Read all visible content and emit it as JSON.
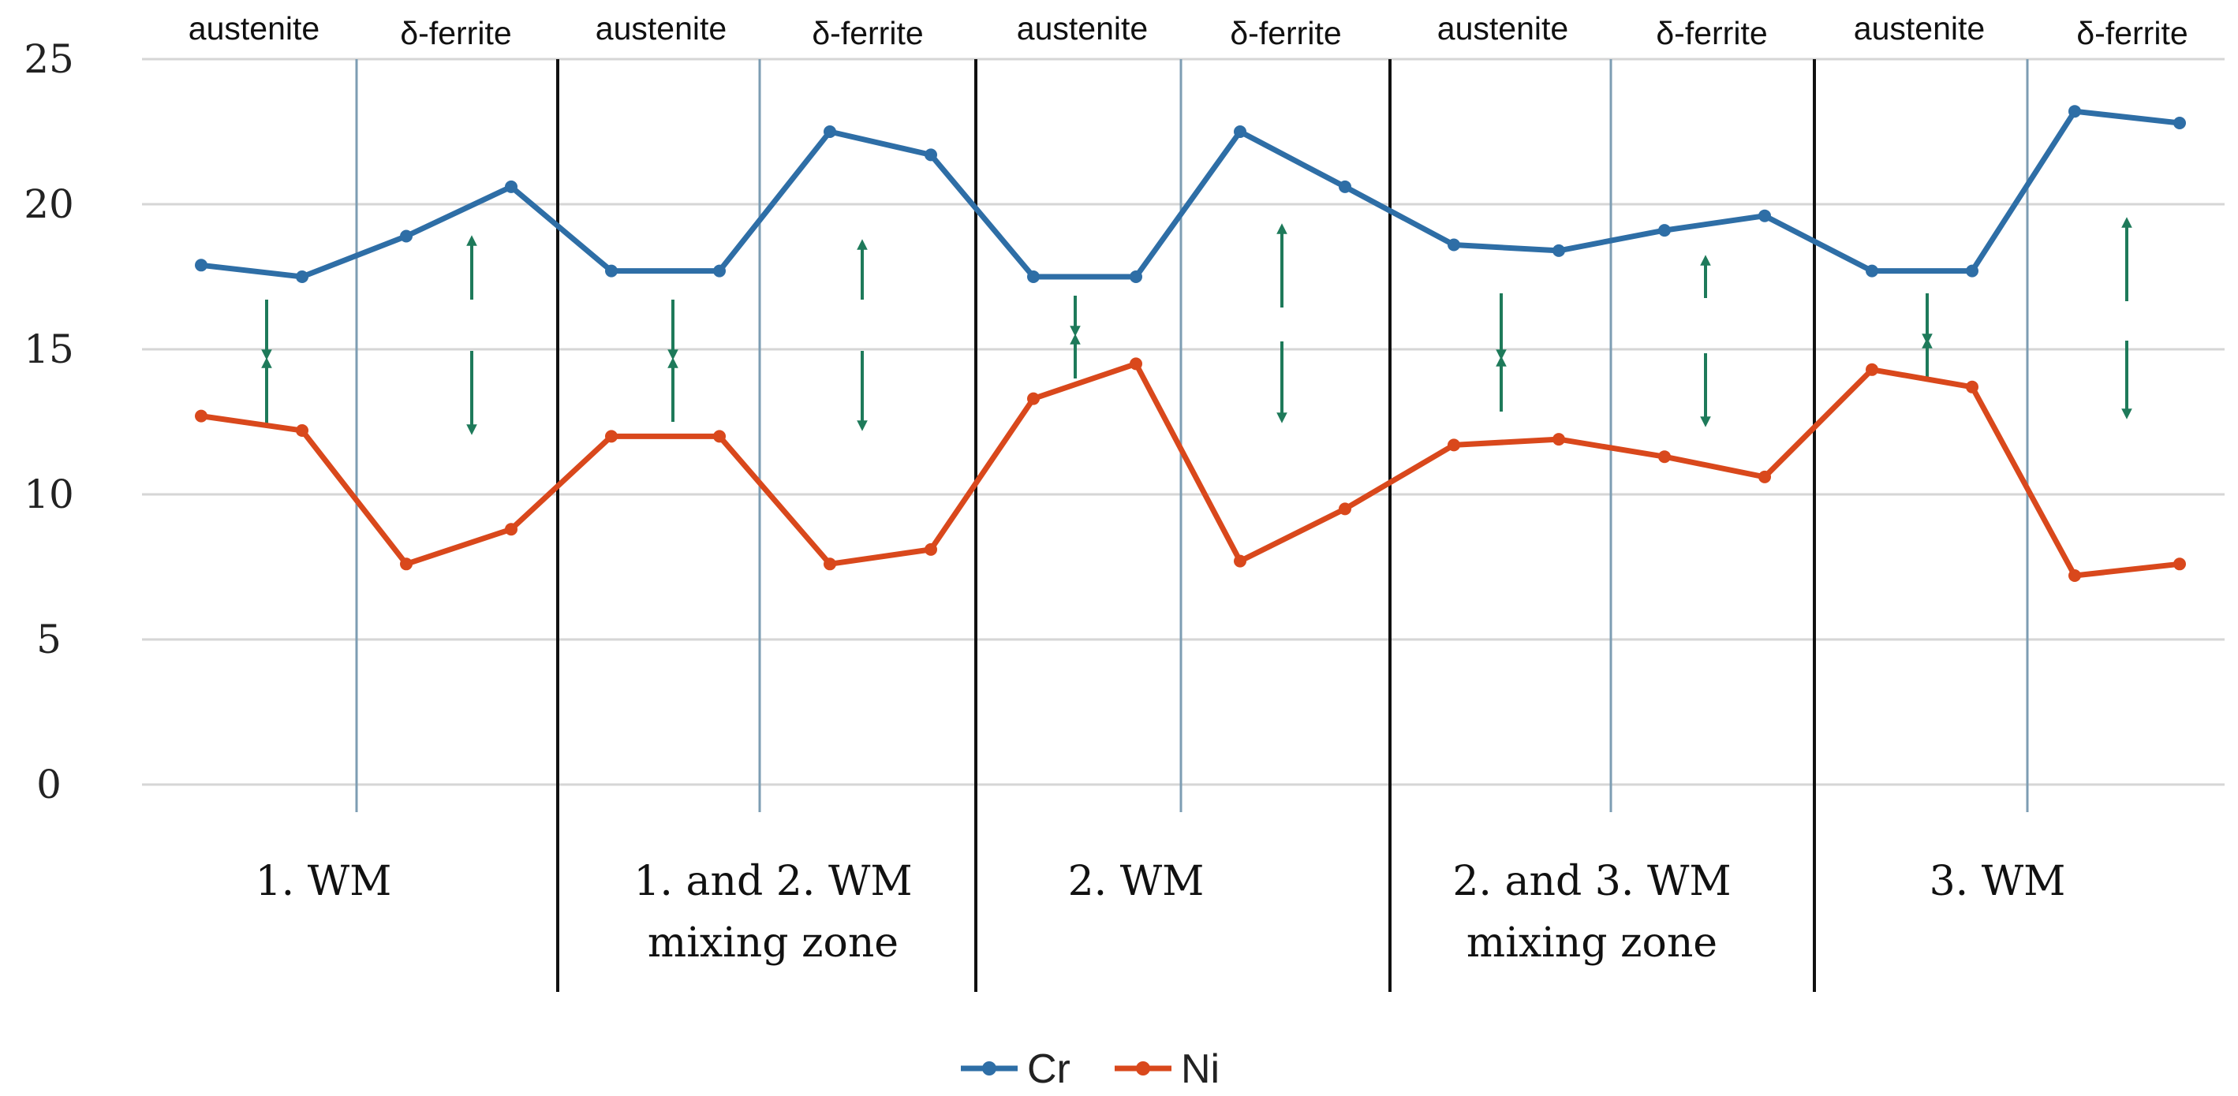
{
  "chart_data": {
    "type": "line",
    "title": "",
    "xlabel": "",
    "ylabel": "",
    "ylim": [
      0,
      25
    ],
    "yticks": [
      0,
      5,
      10,
      15,
      20,
      25
    ],
    "grid": true,
    "legend_position": "bottom-center",
    "x": [
      1,
      2,
      3,
      4,
      5,
      6,
      7,
      8,
      9,
      10,
      11,
      12,
      13,
      14,
      15,
      16,
      17,
      18,
      19,
      20
    ],
    "series": [
      {
        "name": "Cr",
        "color": "#2E6EA6",
        "values": [
          17.9,
          17.5,
          18.9,
          20.6,
          17.7,
          17.7,
          22.5,
          21.7,
          17.5,
          17.5,
          22.5,
          20.6,
          18.6,
          18.4,
          19.1,
          19.6,
          17.7,
          17.7,
          23.2,
          22.8
        ]
      },
      {
        "name": "Ni",
        "color": "#D9481C",
        "values": [
          12.7,
          12.2,
          7.6,
          8.8,
          12.0,
          12.0,
          7.6,
          8.1,
          13.3,
          14.5,
          7.7,
          9.5,
          11.7,
          11.9,
          11.3,
          10.6,
          14.3,
          13.7,
          7.2,
          7.6
        ]
      }
    ],
    "phase_labels": {
      "austenite": "austenite",
      "ferrite": "δ-ferrite"
    },
    "zones": [
      {
        "lines": [
          "1.    WM"
        ]
      },
      {
        "lines": [
          "1.    and 2.  WM",
          "mixing zone"
        ]
      },
      {
        "lines": [
          "2. WM"
        ]
      },
      {
        "lines": [
          "2. and 3. WM",
          "mixing zone"
        ]
      },
      {
        "lines": [
          "3. WM"
        ]
      }
    ],
    "arrow_color": "#1E7A5A"
  }
}
